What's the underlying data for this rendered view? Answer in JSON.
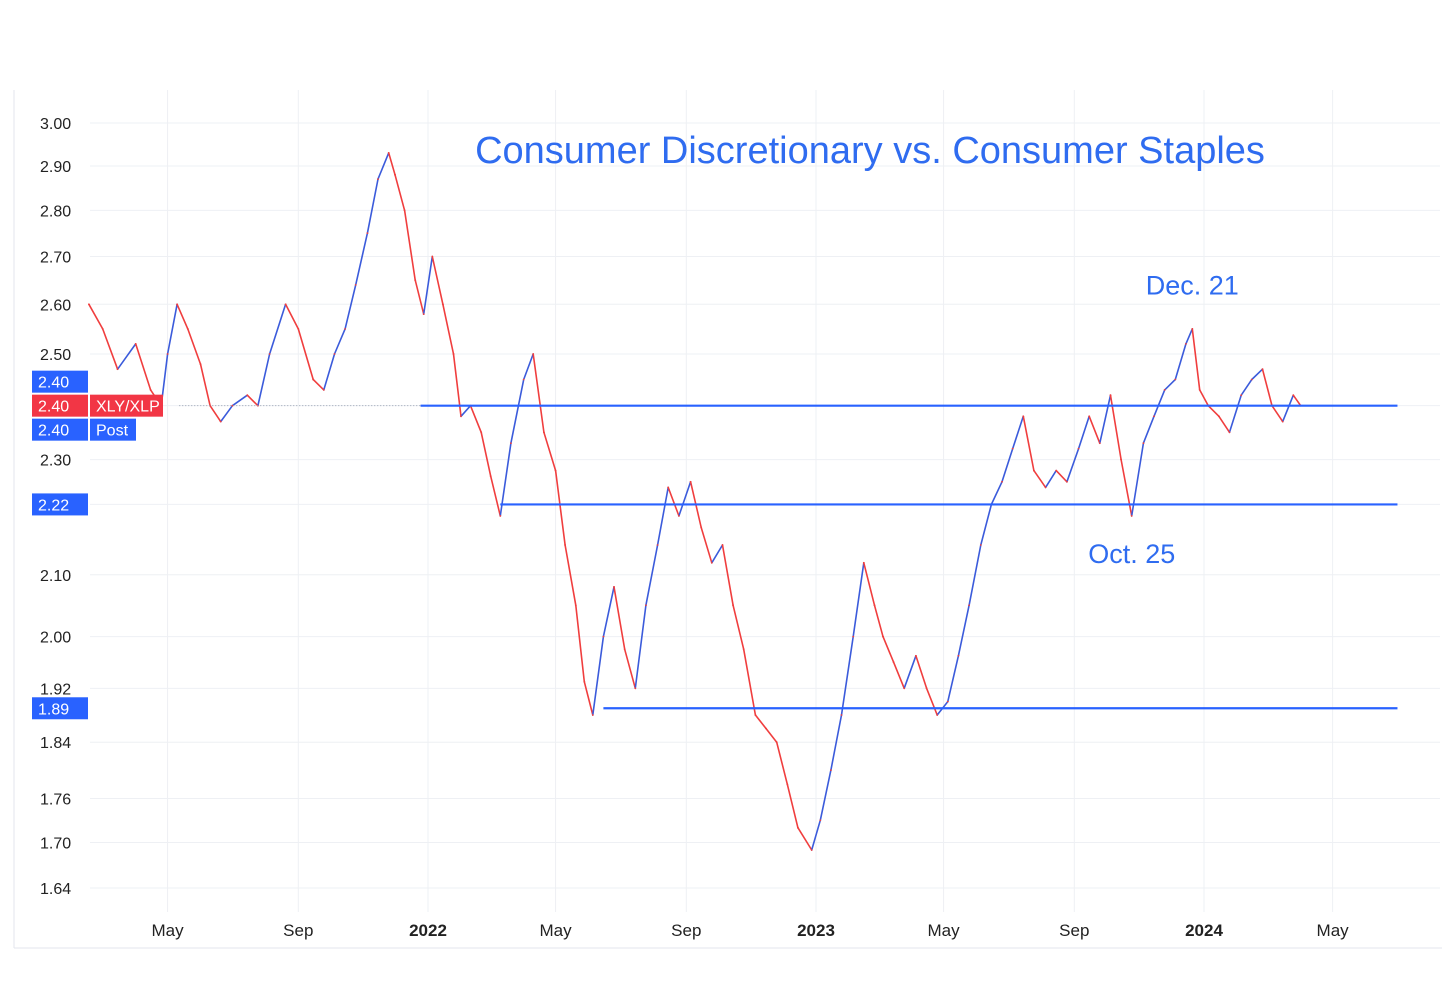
{
  "chart_data": {
    "type": "line",
    "title": "Consumer Discretionary vs. Consumer Staples",
    "subtitle": "",
    "xlabel": "",
    "ylabel": "",
    "x_range": [
      "2021-02-15",
      "2024-07-01"
    ],
    "ylim": [
      1.62,
      3.02
    ],
    "y_scale": "log",
    "grid": true,
    "legend": "none",
    "y_ticks": [
      3.0,
      2.9,
      2.8,
      2.7,
      2.6,
      2.5,
      2.4,
      2.3,
      2.22,
      2.1,
      2.0,
      1.92,
      1.84,
      1.76,
      1.7,
      1.64
    ],
    "x_ticks": [
      {
        "date": "2021-05-01",
        "label": "May",
        "bold": false
      },
      {
        "date": "2021-09-01",
        "label": "Sep",
        "bold": false
      },
      {
        "date": "2022-01-01",
        "label": "2022",
        "bold": true
      },
      {
        "date": "2022-05-01",
        "label": "May",
        "bold": false
      },
      {
        "date": "2022-09-01",
        "label": "Sep",
        "bold": false
      },
      {
        "date": "2023-01-01",
        "label": "2023",
        "bold": true
      },
      {
        "date": "2023-05-01",
        "label": "May",
        "bold": false
      },
      {
        "date": "2023-09-01",
        "label": "Sep",
        "bold": false
      },
      {
        "date": "2024-01-01",
        "label": "2024",
        "bold": true
      },
      {
        "date": "2024-05-01",
        "label": "May",
        "bold": false
      }
    ],
    "series": [
      {
        "name": "XLY/XLP",
        "colors": {
          "up": "#3b5bdb",
          "down": "#f03e3e"
        },
        "points": [
          [
            "2021-02-16",
            2.6
          ],
          [
            "2021-03-01",
            2.55
          ],
          [
            "2021-03-15",
            2.47
          ],
          [
            "2021-04-01",
            2.52
          ],
          [
            "2021-04-15",
            2.43
          ],
          [
            "2021-04-25",
            2.4
          ],
          [
            "2021-05-01",
            2.5
          ],
          [
            "2021-05-10",
            2.6
          ],
          [
            "2021-05-20",
            2.55
          ],
          [
            "2021-06-01",
            2.48
          ],
          [
            "2021-06-10",
            2.4
          ],
          [
            "2021-06-20",
            2.37
          ],
          [
            "2021-07-01",
            2.4
          ],
          [
            "2021-07-15",
            2.42
          ],
          [
            "2021-07-25",
            2.4
          ],
          [
            "2021-08-05",
            2.5
          ],
          [
            "2021-08-20",
            2.6
          ],
          [
            "2021-09-01",
            2.55
          ],
          [
            "2021-09-15",
            2.45
          ],
          [
            "2021-09-25",
            2.43
          ],
          [
            "2021-10-05",
            2.5
          ],
          [
            "2021-10-15",
            2.55
          ],
          [
            "2021-10-25",
            2.64
          ],
          [
            "2021-11-05",
            2.75
          ],
          [
            "2021-11-15",
            2.87
          ],
          [
            "2021-11-25",
            2.93
          ],
          [
            "2021-12-01",
            2.88
          ],
          [
            "2021-12-10",
            2.8
          ],
          [
            "2021-12-20",
            2.65
          ],
          [
            "2021-12-28",
            2.58
          ],
          [
            "2022-01-05",
            2.7
          ],
          [
            "2022-01-15",
            2.6
          ],
          [
            "2022-01-25",
            2.5
          ],
          [
            "2022-02-01",
            2.38
          ],
          [
            "2022-02-10",
            2.4
          ],
          [
            "2022-02-20",
            2.35
          ],
          [
            "2022-03-01",
            2.27
          ],
          [
            "2022-03-10",
            2.2
          ],
          [
            "2022-03-20",
            2.33
          ],
          [
            "2022-04-01",
            2.45
          ],
          [
            "2022-04-10",
            2.5
          ],
          [
            "2022-04-20",
            2.35
          ],
          [
            "2022-05-01",
            2.28
          ],
          [
            "2022-05-10",
            2.15
          ],
          [
            "2022-05-20",
            2.05
          ],
          [
            "2022-05-28",
            1.93
          ],
          [
            "2022-06-05",
            1.88
          ],
          [
            "2022-06-15",
            2.0
          ],
          [
            "2022-06-25",
            2.08
          ],
          [
            "2022-07-05",
            1.98
          ],
          [
            "2022-07-15",
            1.92
          ],
          [
            "2022-07-25",
            2.05
          ],
          [
            "2022-08-05",
            2.15
          ],
          [
            "2022-08-15",
            2.25
          ],
          [
            "2022-08-25",
            2.2
          ],
          [
            "2022-09-05",
            2.26
          ],
          [
            "2022-09-15",
            2.18
          ],
          [
            "2022-09-25",
            2.12
          ],
          [
            "2022-10-05",
            2.15
          ],
          [
            "2022-10-15",
            2.05
          ],
          [
            "2022-10-25",
            1.98
          ],
          [
            "2022-11-05",
            1.88
          ],
          [
            "2022-11-15",
            1.86
          ],
          [
            "2022-11-25",
            1.84
          ],
          [
            "2022-12-05",
            1.78
          ],
          [
            "2022-12-15",
            1.72
          ],
          [
            "2022-12-28",
            1.69
          ],
          [
            "2023-01-05",
            1.73
          ],
          [
            "2023-01-15",
            1.8
          ],
          [
            "2023-01-25",
            1.88
          ],
          [
            "2023-02-05",
            2.0
          ],
          [
            "2023-02-15",
            2.12
          ],
          [
            "2023-02-25",
            2.05
          ],
          [
            "2023-03-05",
            2.0
          ],
          [
            "2023-03-15",
            1.96
          ],
          [
            "2023-03-25",
            1.92
          ],
          [
            "2023-04-05",
            1.97
          ],
          [
            "2023-04-15",
            1.92
          ],
          [
            "2023-04-25",
            1.88
          ],
          [
            "2023-05-05",
            1.9
          ],
          [
            "2023-05-15",
            1.97
          ],
          [
            "2023-05-25",
            2.05
          ],
          [
            "2023-06-05",
            2.15
          ],
          [
            "2023-06-15",
            2.22
          ],
          [
            "2023-06-25",
            2.26
          ],
          [
            "2023-07-05",
            2.32
          ],
          [
            "2023-07-15",
            2.38
          ],
          [
            "2023-07-25",
            2.28
          ],
          [
            "2023-08-05",
            2.25
          ],
          [
            "2023-08-15",
            2.28
          ],
          [
            "2023-08-25",
            2.26
          ],
          [
            "2023-09-05",
            2.32
          ],
          [
            "2023-09-15",
            2.38
          ],
          [
            "2023-09-25",
            2.33
          ],
          [
            "2023-10-05",
            2.42
          ],
          [
            "2023-10-15",
            2.3
          ],
          [
            "2023-10-25",
            2.2
          ],
          [
            "2023-11-05",
            2.33
          ],
          [
            "2023-11-15",
            2.38
          ],
          [
            "2023-11-25",
            2.43
          ],
          [
            "2023-12-05",
            2.45
          ],
          [
            "2023-12-15",
            2.52
          ],
          [
            "2023-12-21",
            2.55
          ],
          [
            "2023-12-28",
            2.43
          ],
          [
            "2024-01-05",
            2.4
          ],
          [
            "2024-01-15",
            2.38
          ],
          [
            "2024-01-25",
            2.35
          ],
          [
            "2024-02-05",
            2.42
          ],
          [
            "2024-02-15",
            2.45
          ],
          [
            "2024-02-25",
            2.47
          ],
          [
            "2024-03-05",
            2.4
          ],
          [
            "2024-03-15",
            2.37
          ],
          [
            "2024-03-25",
            2.42
          ],
          [
            "2024-04-01",
            2.4
          ]
        ]
      }
    ],
    "support_lines": [
      {
        "value": 2.4,
        "start": "2021-12-25",
        "end": "2024-07-01"
      },
      {
        "value": 2.22,
        "start": "2022-03-10",
        "end": "2024-07-01"
      },
      {
        "value": 1.89,
        "start": "2022-06-15",
        "end": "2024-07-01"
      }
    ],
    "price_line": {
      "value": 2.4,
      "start": "2021-05-12",
      "end": "2021-12-25"
    },
    "price_badges": [
      {
        "value": "2.40",
        "label": "",
        "color": "#2962ff",
        "offset": -24
      },
      {
        "value": "2.40",
        "label": "XLY/XLP",
        "color": "#f23645",
        "offset": 0
      },
      {
        "value": "2.40",
        "label": "Post",
        "color": "#2962ff",
        "offset": 24
      },
      {
        "value": "2.22",
        "label": "",
        "color": "#2962ff",
        "offset": 0
      },
      {
        "value": "1.89",
        "label": "",
        "color": "#2962ff",
        "offset": 0
      }
    ],
    "annotations": [
      {
        "text": "Dec. 21",
        "date": "2023-12-21",
        "value": 2.62
      },
      {
        "text": "Oct. 25",
        "date": "2023-10-25",
        "value": 2.12
      }
    ],
    "colors": {
      "accent": "#1f6bff",
      "title": "#2f6cf0",
      "line": "#2962ff",
      "grid": "#eef0f4"
    }
  }
}
